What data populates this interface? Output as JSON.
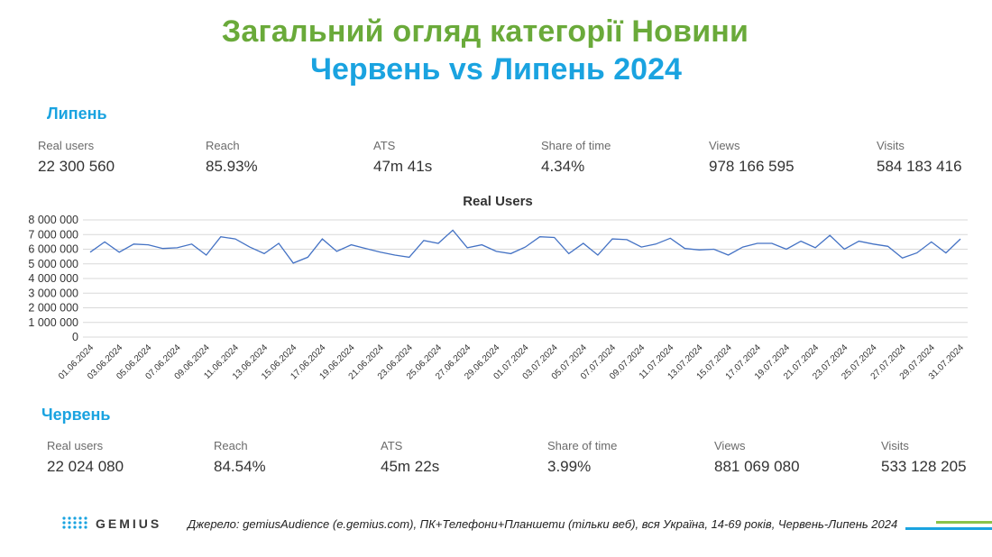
{
  "header": {
    "title": "Загальний огляд категорії Новини",
    "subtitle": "Червень vs Липень 2024"
  },
  "july": {
    "label": "Липень",
    "metrics": [
      {
        "label": "Real users",
        "value": "22 300 560"
      },
      {
        "label": "Reach",
        "value": "85.93%"
      },
      {
        "label": "ATS",
        "value": "47m 41s"
      },
      {
        "label": "Share of time",
        "value": "4.34%"
      },
      {
        "label": "Views",
        "value": "978 166 595"
      },
      {
        "label": "Visits",
        "value": "584 183 416"
      }
    ]
  },
  "june": {
    "label": "Червень",
    "metrics": [
      {
        "label": "Real users",
        "value": "22 024 080"
      },
      {
        "label": "Reach",
        "value": "84.54%"
      },
      {
        "label": "ATS",
        "value": "45m 22s"
      },
      {
        "label": "Share of time",
        "value": "3.99%"
      },
      {
        "label": "Views",
        "value": "881 069 080"
      },
      {
        "label": "Visits",
        "value": "533 128 205"
      }
    ]
  },
  "footer": {
    "logo_text": "GEMIUS",
    "logo_icon": "gemius-dots-icon",
    "source": "Джерело: gemiusAudience (e.gemius.com), ПК+Телефони+Планшети (тільки веб), вся Україна, 14-69 років, Червень-Липень 2024",
    "stripe_colors": [
      "#8bc34a",
      "#1aa3e0"
    ]
  },
  "colors": {
    "title_green": "#6aaa3a",
    "accent_blue": "#1aa3e0",
    "line": "#4472c4",
    "grid": "#d9d9d9"
  },
  "chart_data": {
    "type": "line",
    "title": "Real Users",
    "xlabel": "",
    "ylabel": "",
    "ylim": [
      0,
      8000000
    ],
    "yticks": [
      0,
      1000000,
      2000000,
      3000000,
      4000000,
      5000000,
      6000000,
      7000000,
      8000000
    ],
    "ytick_labels": [
      "0",
      "1 000 000",
      "2 000 000",
      "3 000 000",
      "4 000 000",
      "5 000 000",
      "6 000 000",
      "7 000 000",
      "8 000 000"
    ],
    "grid": true,
    "x": [
      "01.06.2024",
      "02.06.2024",
      "03.06.2024",
      "04.06.2024",
      "05.06.2024",
      "06.06.2024",
      "07.06.2024",
      "08.06.2024",
      "09.06.2024",
      "10.06.2024",
      "11.06.2024",
      "12.06.2024",
      "13.06.2024",
      "14.06.2024",
      "15.06.2024",
      "16.06.2024",
      "17.06.2024",
      "18.06.2024",
      "19.06.2024",
      "20.06.2024",
      "21.06.2024",
      "22.06.2024",
      "23.06.2024",
      "24.06.2024",
      "25.06.2024",
      "26.06.2024",
      "27.06.2024",
      "28.06.2024",
      "29.06.2024",
      "30.06.2024",
      "01.07.2024",
      "02.07.2024",
      "03.07.2024",
      "04.07.2024",
      "05.07.2024",
      "06.07.2024",
      "07.07.2024",
      "08.07.2024",
      "09.07.2024",
      "10.07.2024",
      "11.07.2024",
      "12.07.2024",
      "13.07.2024",
      "14.07.2024",
      "15.07.2024",
      "16.07.2024",
      "17.07.2024",
      "18.07.2024",
      "19.07.2024",
      "20.07.2024",
      "21.07.2024",
      "22.07.2024",
      "23.07.2024",
      "24.07.2024",
      "25.07.2024",
      "26.07.2024",
      "27.07.2024",
      "28.07.2024",
      "29.07.2024",
      "30.07.2024",
      "31.07.2024"
    ],
    "x_tick_labels": [
      "01.06.2024",
      "03.06.2024",
      "05.06.2024",
      "07.06.2024",
      "09.06.2024",
      "11.06.2024",
      "13.06.2024",
      "15.06.2024",
      "17.06.2024",
      "19.06.2024",
      "21.06.2024",
      "23.06.2024",
      "25.06.2024",
      "27.06.2024",
      "29.06.2024",
      "01.07.2024",
      "03.07.2024",
      "05.07.2024",
      "07.07.2024",
      "09.07.2024",
      "11.07.2024",
      "13.07.2024",
      "15.07.2024",
      "17.07.2024",
      "19.07.2024",
      "21.07.2024",
      "23.07.2024",
      "25.07.2024",
      "27.07.2024",
      "29.07.2024",
      "31.07.2024"
    ],
    "series": [
      {
        "values": [
          5800000,
          6500000,
          5800000,
          6350000,
          6300000,
          6050000,
          6100000,
          6350000,
          5600000,
          6850000,
          6700000,
          6150000,
          5700000,
          6400000,
          5050000,
          5450000,
          6700000,
          5850000,
          6300000,
          6050000,
          5800000,
          5600000,
          5450000,
          6600000,
          6400000,
          7300000,
          6100000,
          6300000,
          5850000,
          5700000,
          6150000,
          6850000,
          6800000,
          5700000,
          6400000,
          5600000,
          6700000,
          6650000,
          6150000,
          6350000,
          6750000,
          6050000,
          5950000,
          6000000,
          5600000,
          6150000,
          6400000,
          6400000,
          6000000,
          6550000,
          6100000,
          6950000,
          6000000,
          6550000,
          6350000,
          6200000,
          5400000,
          5750000,
          6500000,
          5750000,
          6700000
        ]
      }
    ]
  }
}
